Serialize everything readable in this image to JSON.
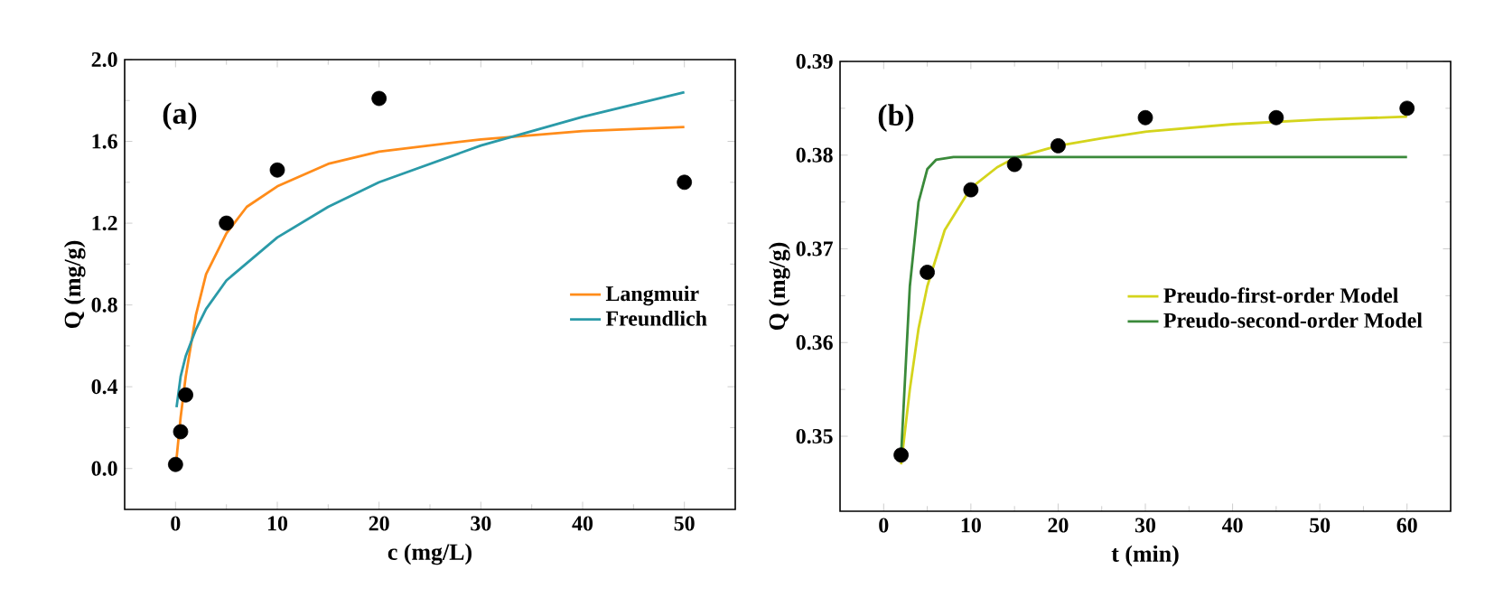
{
  "chart_data": [
    {
      "type": "line",
      "xlabel": "c (mg/L)",
      "ylabel": "Q (mg/g)",
      "annotations": [
        "(a)"
      ],
      "xlim": [
        -5,
        55
      ],
      "ylim": [
        -0.2,
        2.0
      ],
      "xticks": [
        0,
        10,
        20,
        30,
        40,
        50
      ],
      "yticks": [
        {
          "value": 0,
          "label": "0.0"
        },
        0.4,
        0.8,
        1.2,
        1.6,
        {
          "value": 2,
          "label": "2.0"
        }
      ],
      "legend": "right",
      "series": [
        {
          "type": "scatter",
          "color": "#000000",
          "x": [
            0,
            0.5,
            1,
            5,
            10,
            20,
            50
          ],
          "values": [
            0.02,
            0.18,
            0.36,
            1.2,
            1.46,
            1.81,
            1.4
          ]
        },
        {
          "name": "Langmuir",
          "color": "#ff8c1a",
          "x": [
            0.1,
            0.5,
            1,
            2,
            3,
            5,
            7,
            10,
            15,
            20,
            30,
            40,
            50
          ],
          "values": [
            0.05,
            0.25,
            0.45,
            0.75,
            0.95,
            1.15,
            1.28,
            1.38,
            1.49,
            1.55,
            1.61,
            1.65,
            1.67
          ]
        },
        {
          "name": "Freundlich",
          "color": "#2a9aa8",
          "x": [
            0.1,
            0.5,
            1,
            2,
            3,
            5,
            10,
            15,
            20,
            30,
            40,
            50
          ],
          "values": [
            0.3,
            0.45,
            0.55,
            0.68,
            0.78,
            0.92,
            1.13,
            1.28,
            1.4,
            1.58,
            1.72,
            1.84
          ]
        }
      ]
    },
    {
      "type": "line",
      "xlabel": "t (min)",
      "ylabel": "Q (mg/g)",
      "annotations": [
        "(b)"
      ],
      "xlim": [
        -5,
        65
      ],
      "ylim": [
        0.342,
        0.39
      ],
      "xticks": [
        0,
        10,
        20,
        30,
        40,
        50,
        60
      ],
      "yticks": [
        0.35,
        0.36,
        0.37,
        0.38,
        0.39
      ],
      "legend": "right",
      "series": [
        {
          "type": "scatter",
          "color": "#000000",
          "x": [
            2,
            5,
            10,
            15,
            20,
            30,
            45,
            60
          ],
          "values": [
            0.348,
            0.3675,
            0.3763,
            0.379,
            0.381,
            0.384,
            0.384,
            0.385
          ]
        },
        {
          "name": "Preudo-first-order Model",
          "color": "#d4d41c",
          "x": [
            2,
            3,
            4,
            5,
            7,
            10,
            13,
            15,
            20,
            25,
            30,
            40,
            50,
            60
          ],
          "values": [
            0.347,
            0.355,
            0.3615,
            0.366,
            0.372,
            0.3765,
            0.3787,
            0.3797,
            0.381,
            0.3818,
            0.3825,
            0.3833,
            0.3838,
            0.3841
          ]
        },
        {
          "name": "Preudo-second-order Model",
          "color": "#3a8a3a",
          "x": [
            2,
            3,
            4,
            5,
            6,
            8,
            20,
            60
          ],
          "values": [
            0.348,
            0.366,
            0.375,
            0.3785,
            0.3795,
            0.3798,
            0.3798,
            0.3798
          ]
        }
      ]
    }
  ]
}
